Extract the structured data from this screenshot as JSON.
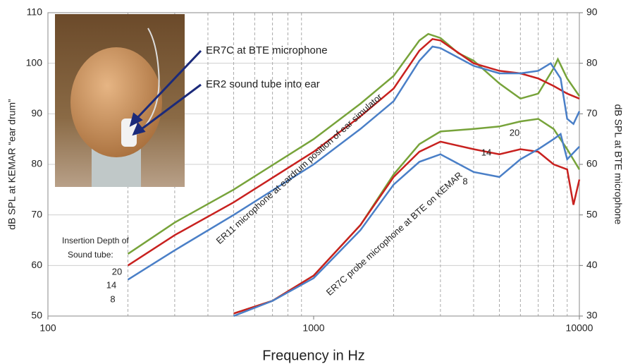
{
  "chart_data": {
    "type": "line",
    "xlabel": "Frequency in Hz",
    "ylabel": "dB SPL at KEMAR “ear drum”",
    "y2label": "dB SPL at BTE microphone",
    "xscale": "log",
    "xlim": [
      100,
      10000
    ],
    "xticks": [
      100,
      1000,
      10000
    ],
    "xminor": [
      200,
      300,
      400,
      500,
      600,
      700,
      800,
      900,
      2000,
      3000,
      4000,
      5000,
      6000,
      7000,
      8000,
      9000
    ],
    "ylim": [
      50,
      110
    ],
    "yticks": [
      50,
      60,
      70,
      80,
      90,
      100,
      110
    ],
    "y2lim": [
      30,
      90
    ],
    "y2ticks": [
      30,
      40,
      50,
      60,
      70,
      80,
      90
    ],
    "grid": true,
    "annotations": [
      "ER7C at BTE microphone",
      "ER2 sound tube into ear",
      "Insertion Depth of",
      "Sound tube:",
      "ER11 microphone at eardrum position of ear simulator",
      "ER7C  probe microphone at BTE on KEMAR"
    ],
    "series": [
      {
        "name": "20",
        "color": "#77a33a",
        "x": [
          200,
          300,
          500,
          1000,
          1500,
          2000,
          2500,
          2700,
          3000,
          3500,
          4000,
          5000,
          6000,
          7000,
          8000,
          8300,
          9000,
          10000
        ],
        "values": [
          62.3,
          68.5,
          75,
          85,
          92,
          97.5,
          104.5,
          105.8,
          105,
          102,
          100.5,
          96,
          93,
          94,
          99,
          100.8,
          97,
          93.5
        ]
      },
      {
        "name": "14",
        "color": "#c8211f",
        "x": [
          200,
          300,
          500,
          1000,
          1500,
          2000,
          2500,
          2800,
          3000,
          4000,
          5000,
          6000,
          7000,
          8000,
          9000,
          10000
        ],
        "values": [
          60,
          66,
          72.5,
          82.5,
          89.5,
          95,
          102.5,
          104.8,
          104.5,
          100,
          98.5,
          98,
          97,
          95.5,
          94,
          93
        ]
      },
      {
        "name": "8",
        "color": "#4a7fc7",
        "x": [
          200,
          300,
          500,
          1000,
          1500,
          2000,
          2500,
          2800,
          3000,
          4000,
          5000,
          6000,
          7000,
          7800,
          8500,
          9000,
          9500,
          10000
        ],
        "values": [
          57.2,
          63,
          70,
          80,
          87,
          92.5,
          100.5,
          103.3,
          103,
          99.5,
          98,
          98,
          98.5,
          100,
          97,
          89,
          88,
          90.5
        ]
      },
      {
        "name": "20",
        "color": "#77a33a",
        "axis": "y2",
        "x": [
          500,
          700,
          1000,
          1500,
          2000,
          2500,
          3000,
          4000,
          5000,
          6000,
          7000,
          8000,
          9000,
          10000
        ],
        "values": [
          30.5,
          33,
          38,
          48,
          58,
          64,
          66.5,
          67,
          67.5,
          68.5,
          69,
          67,
          63,
          59
        ]
      },
      {
        "name": "14",
        "color": "#c8211f",
        "axis": "y2",
        "x": [
          500,
          700,
          1000,
          1500,
          2000,
          2500,
          3000,
          4000,
          5000,
          6000,
          7000,
          8000,
          9000,
          9500,
          10000
        ],
        "values": [
          30.5,
          33,
          38,
          48,
          57.5,
          62.5,
          64.5,
          63,
          62,
          63,
          62.5,
          60,
          59,
          52,
          57
        ]
      },
      {
        "name": "8",
        "color": "#4a7fc7",
        "axis": "y2",
        "x": [
          500,
          700,
          1000,
          1500,
          2000,
          2500,
          3000,
          4000,
          5000,
          6000,
          7000,
          8000,
          8500,
          9000,
          10000
        ],
        "values": [
          30,
          33,
          37.5,
          47,
          56,
          60.5,
          62,
          58.5,
          57.5,
          61,
          63,
          65,
          66,
          61,
          63.5
        ]
      }
    ]
  }
}
